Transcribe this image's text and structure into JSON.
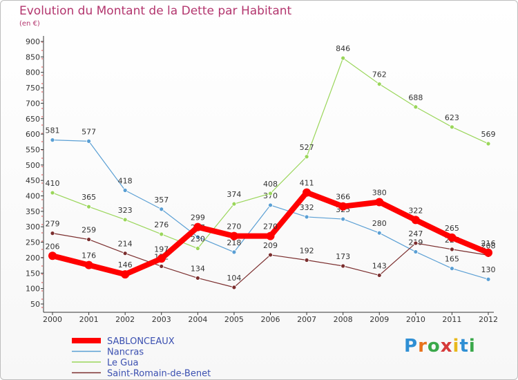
{
  "chart_data": {
    "type": "line",
    "title": "Evolution du Montant de la Dette par Habitant",
    "subtitle": "(en €)",
    "x": [
      "2000",
      "2001",
      "2002",
      "2003",
      "2004",
      "2005",
      "2006",
      "2007",
      "2008",
      "2009",
      "2010",
      "2011",
      "2012"
    ],
    "yticks": [
      50,
      100,
      150,
      200,
      250,
      300,
      350,
      400,
      450,
      500,
      550,
      600,
      650,
      700,
      750,
      800,
      850,
      900
    ],
    "ylim": [
      50,
      900
    ],
    "grid": false,
    "legend_position": "bottom-left",
    "series": [
      {
        "name": "SABLONCEAUX",
        "color": "#ff0000",
        "values": [
          206,
          176,
          146,
          197,
          299,
          270,
          270,
          411,
          366,
          380,
          322,
          265,
          216
        ]
      },
      {
        "name": "Nancras",
        "color": "#5a9fd4",
        "values": [
          581,
          577,
          418,
          357,
          267,
          218,
          370,
          332,
          325,
          280,
          219,
          165,
          130
        ]
      },
      {
        "name": "Le Gua",
        "color": "#9ad65a",
        "values": [
          410,
          365,
          323,
          276,
          230,
          374,
          408,
          527,
          846,
          762,
          688,
          623,
          569
        ]
      },
      {
        "name": "Saint-Romain-de-Benet",
        "color": "#7b2e2e",
        "values": [
          279,
          259,
          214,
          172,
          134,
          104,
          209,
          192,
          173,
          143,
          247,
          227,
          208
        ]
      }
    ]
  },
  "logo": {
    "letters": [
      "P",
      "r",
      "o",
      "x",
      "i",
      "t",
      "i"
    ],
    "colors": [
      "#2f8fd4",
      "#e8731c",
      "#3aa84a",
      "#d63a3a",
      "#e8b81c",
      "#2f8fd4",
      "#3aa84a"
    ]
  }
}
